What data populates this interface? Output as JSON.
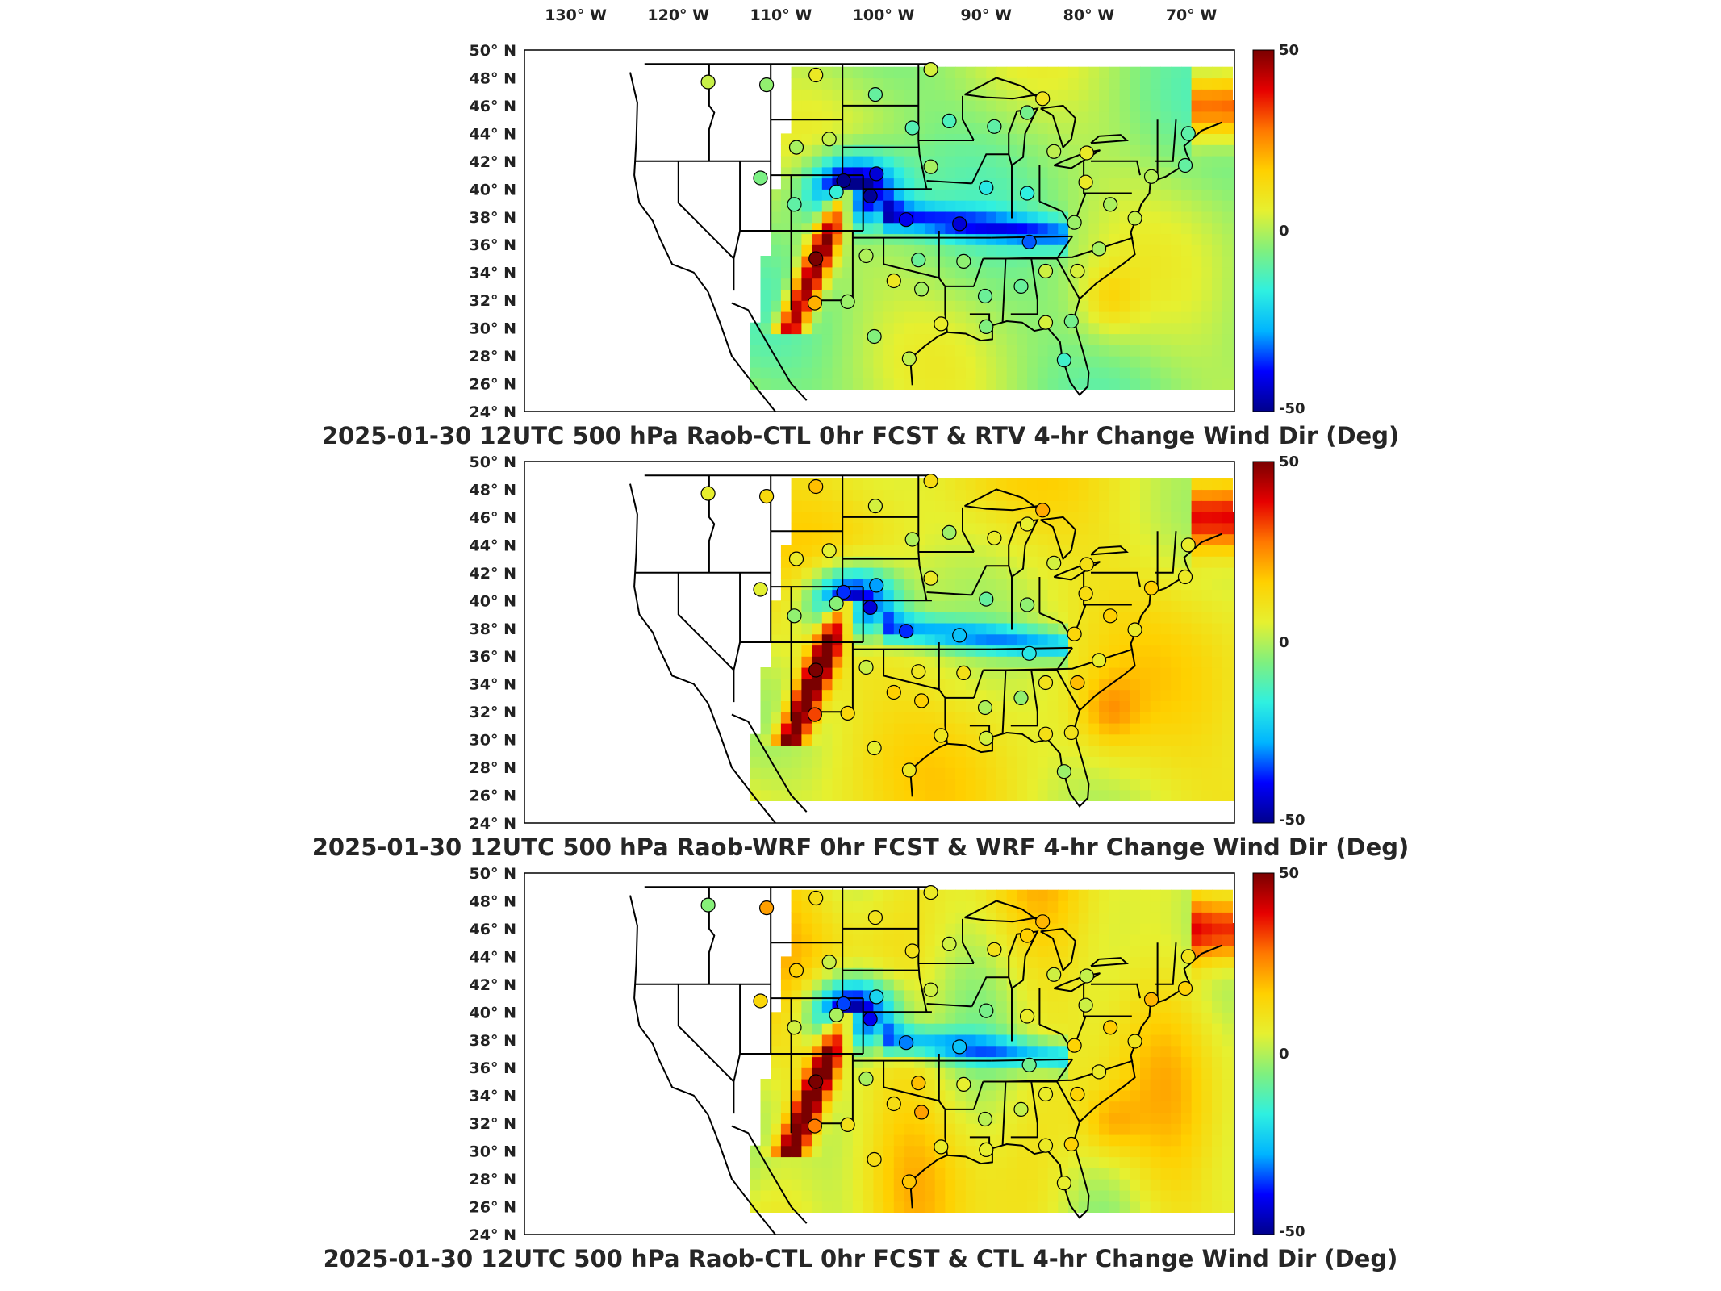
{
  "longitude_ticks": [
    "130° W",
    "120° W",
    "110° W",
    "100° W",
    "90° W",
    "80° W",
    "70° W"
  ],
  "latitude_ticks": [
    "50° N",
    "48° N",
    "46° N",
    "44° N",
    "42° N",
    "40° N",
    "38° N",
    "36° N",
    "34° N",
    "32° N",
    "30° N",
    "28° N",
    "26° N",
    "24° N"
  ],
  "colorbar": {
    "max": "50",
    "mid": "0",
    "min": "-50"
  },
  "panels": [
    {
      "title": "2025-01-30 12UTC 500 hPa Raob-CTL 0hr FCST & RTV 4-hr Change Wind Dir (Deg)"
    },
    {
      "title": "2025-01-30 12UTC 500 hPa Raob-WRF 0hr FCST & WRF 4-hr Change Wind Dir (Deg)"
    },
    {
      "title": "2025-01-30 12UTC 500 hPa Raob-CTL 0hr FCST & CTL 4-hr Change Wind Dir (Deg)"
    }
  ],
  "colors": {
    "colormap": [
      "#00008b",
      "#0000ff",
      "#00b4ff",
      "#2ff0e0",
      "#7ff07f",
      "#e6f030",
      "#ffd000",
      "#ff7800",
      "#e60000",
      "#7a0000"
    ]
  },
  "stations": [
    [
      -117.1,
      47.7
    ],
    [
      -111.4,
      47.5
    ],
    [
      -106.6,
      48.2
    ],
    [
      -100.8,
      46.8
    ],
    [
      -95.4,
      48.6
    ],
    [
      -93.6,
      44.9
    ],
    [
      -97.2,
      44.4
    ],
    [
      -89.2,
      44.5
    ],
    [
      -84.5,
      46.5
    ],
    [
      -83.4,
      42.7
    ],
    [
      -86.0,
      45.5
    ],
    [
      -80.2,
      42.6
    ],
    [
      -108.5,
      43.0
    ],
    [
      -105.3,
      43.6
    ],
    [
      -112.0,
      40.8
    ],
    [
      -103.9,
      40.6
    ],
    [
      -100.7,
      41.1
    ],
    [
      -95.4,
      41.6
    ],
    [
      -97.8,
      37.8
    ],
    [
      -101.3,
      39.5
    ],
    [
      -104.6,
      39.8
    ],
    [
      -108.7,
      38.9
    ],
    [
      -90.0,
      40.1
    ],
    [
      -86.0,
      39.7
    ],
    [
      -80.3,
      40.5
    ],
    [
      -77.9,
      38.9
    ],
    [
      -81.4,
      37.6
    ],
    [
      -85.8,
      36.2
    ],
    [
      -92.6,
      37.5
    ],
    [
      -96.6,
      34.9
    ],
    [
      -101.7,
      35.2
    ],
    [
      -106.6,
      35.0
    ],
    [
      -99.0,
      33.4
    ],
    [
      -103.5,
      31.9
    ],
    [
      -106.7,
      31.8
    ],
    [
      -96.3,
      32.8
    ],
    [
      -90.1,
      32.3
    ],
    [
      -86.6,
      33.0
    ],
    [
      -84.2,
      34.1
    ],
    [
      -81.1,
      34.1
    ],
    [
      -79.0,
      35.7
    ],
    [
      -75.5,
      37.9
    ],
    [
      -73.9,
      40.9
    ],
    [
      -70.6,
      41.7
    ],
    [
      -70.3,
      44.0
    ],
    [
      -94.4,
      30.3
    ],
    [
      -90.0,
      30.1
    ],
    [
      -84.2,
      30.4
    ],
    [
      -81.7,
      30.5
    ],
    [
      -97.5,
      27.8
    ],
    [
      -100.9,
      29.4
    ],
    [
      -82.4,
      27.7
    ],
    [
      -92.2,
      34.8
    ]
  ]
}
